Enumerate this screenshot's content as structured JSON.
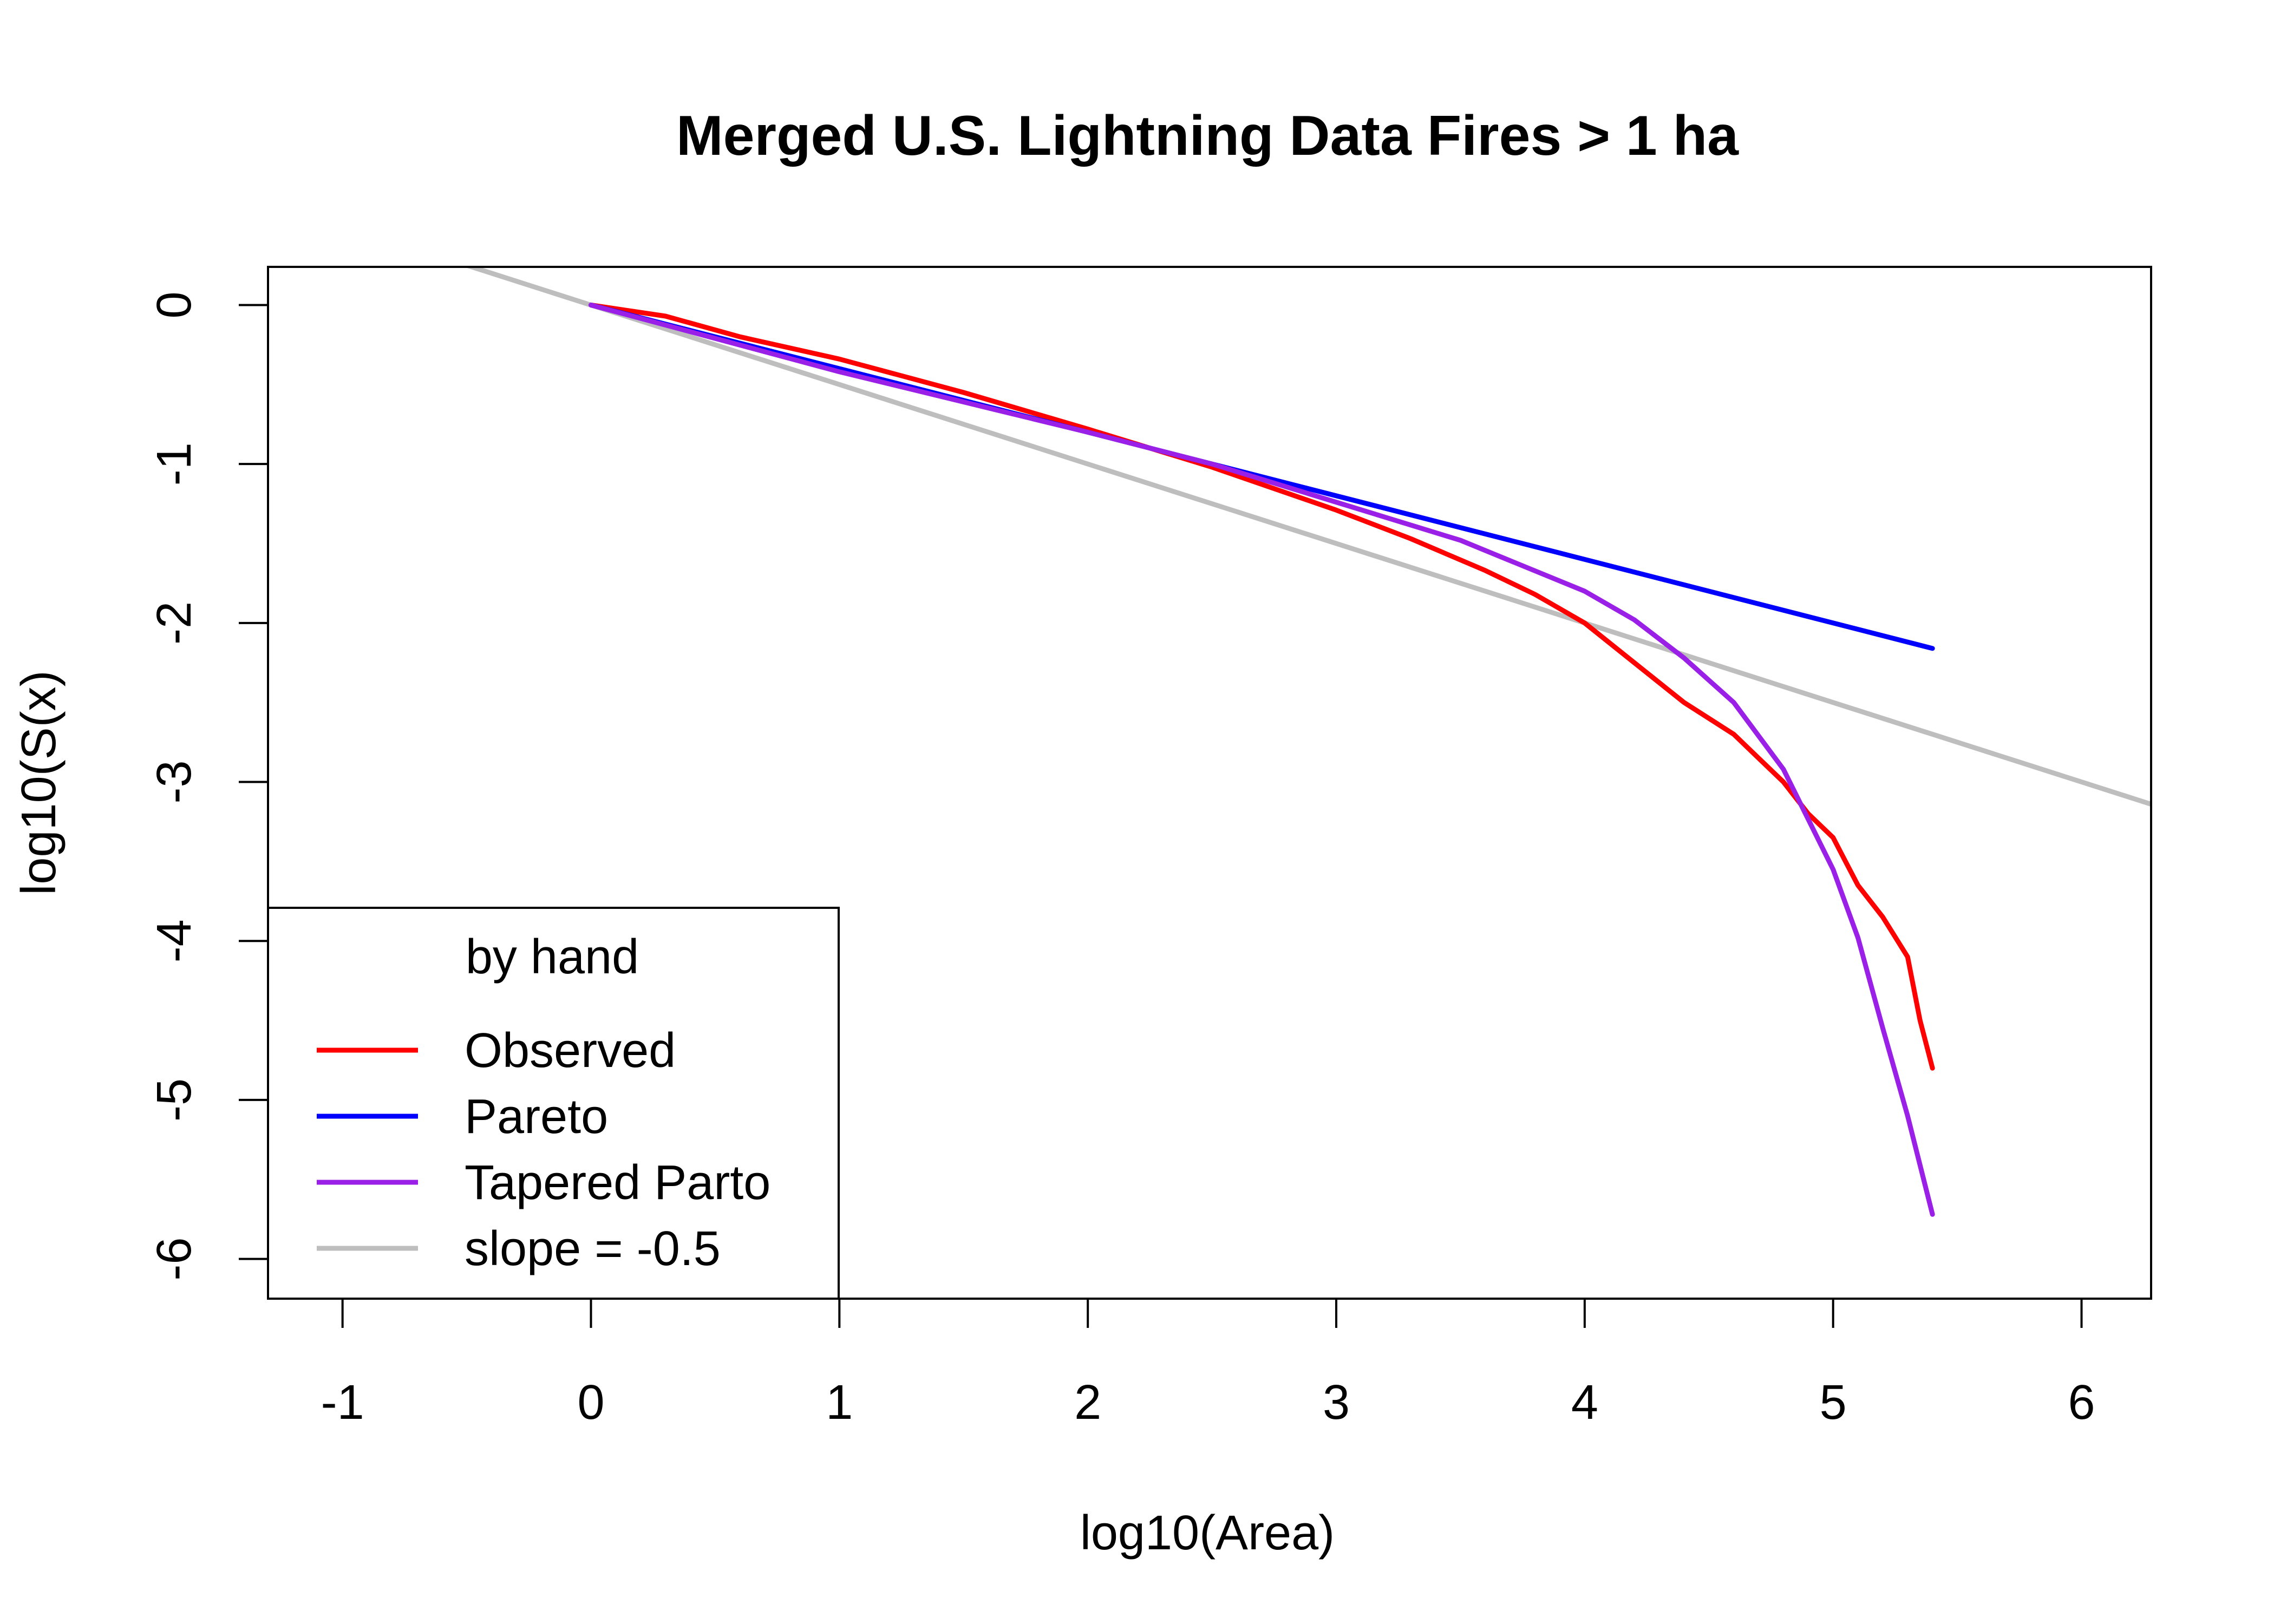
{
  "chart_data": {
    "type": "line",
    "title": "Merged U.S. Lightning Data Fires > 1 ha",
    "xlabel": "log10(Area)",
    "ylabel": "log10(S(x)",
    "xlim": [
      -1.3,
      6.28
    ],
    "ylim": [
      -6.25,
      0.24
    ],
    "xticks": [
      -1,
      0,
      1,
      2,
      3,
      4,
      5,
      6
    ],
    "yticks": [
      0,
      -1,
      -2,
      -3,
      -4,
      -5,
      -6
    ],
    "grid": false,
    "legend": {
      "title": "by hand",
      "position": "bottom-left",
      "entries": [
        "Observed",
        "Pareto",
        "Tapered Parto",
        "slope = -0.5"
      ]
    },
    "series": [
      {
        "name": "Observed",
        "color": "#ff0000",
        "x": [
          0,
          0.3,
          0.6,
          1.0,
          1.5,
          2.0,
          2.5,
          3.0,
          3.3,
          3.6,
          3.8,
          4.0,
          4.2,
          4.4,
          4.6,
          4.7,
          4.8,
          4.9,
          5.0,
          5.05,
          5.1,
          5.2,
          5.3,
          5.35,
          5.4
        ],
        "y": [
          0,
          -0.07,
          -0.2,
          -0.34,
          -0.55,
          -0.78,
          -1.02,
          -1.29,
          -1.47,
          -1.67,
          -1.82,
          -2.0,
          -2.25,
          -2.5,
          -2.7,
          -2.85,
          -3.0,
          -3.2,
          -3.35,
          -3.5,
          -3.65,
          -3.85,
          -4.1,
          -4.5,
          -4.8
        ]
      },
      {
        "name": "Pareto",
        "color": "#0000ff",
        "x": [
          0,
          5.4
        ],
        "y": [
          0,
          -2.16
        ]
      },
      {
        "name": "Tapered Parto",
        "color": "#9a20e8",
        "x": [
          0,
          1,
          2,
          2.5,
          3,
          3.5,
          4,
          4.2,
          4.4,
          4.6,
          4.8,
          5.0,
          5.1,
          5.2,
          5.3,
          5.4
        ],
        "y": [
          0,
          -0.42,
          -0.8,
          -1.0,
          -1.24,
          -1.48,
          -1.8,
          -1.98,
          -2.22,
          -2.5,
          -2.92,
          -3.55,
          -3.98,
          -4.55,
          -5.1,
          -5.72
        ]
      },
      {
        "name": "slope = -0.5",
        "color": "#bebebe",
        "x": [
          -0.5,
          6.28
        ],
        "y": [
          0.25,
          -3.14
        ]
      }
    ]
  }
}
